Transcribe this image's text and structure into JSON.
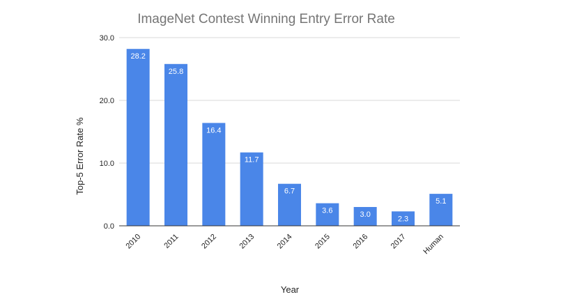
{
  "chart_data": {
    "type": "bar",
    "title": "ImageNet Contest Winning Entry Error Rate",
    "xlabel": "Year",
    "ylabel": "Top-5 Error Rate %",
    "categories": [
      "2010",
      "2011",
      "2012",
      "2013",
      "2014",
      "2015",
      "2016",
      "2017",
      "Human"
    ],
    "values": [
      28.2,
      25.8,
      16.4,
      11.7,
      6.7,
      3.6,
      3.0,
      2.3,
      5.1
    ],
    "data_labels": [
      "28.2",
      "25.8",
      "16.4",
      "11.7",
      "6.7",
      "3.6",
      "3.0",
      "2.3",
      "5.1"
    ],
    "y_ticks": [
      "0.0",
      "10.0",
      "20.0",
      "30.0"
    ],
    "ylim": [
      0,
      30
    ],
    "grid": true,
    "legend": "none",
    "bar_color": "#4a86e8"
  }
}
